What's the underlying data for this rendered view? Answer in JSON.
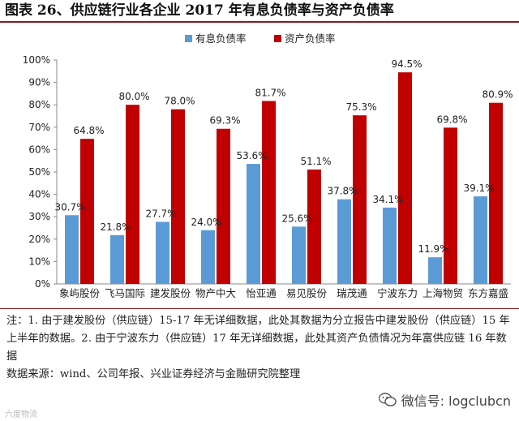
{
  "title": "图表 26、供应链行业各企业 2017 年有息负债率与资产负债率",
  "chart_data": {
    "type": "bar",
    "categories": [
      "象屿股份",
      "飞马国际",
      "建发股份",
      "物产中大",
      "怡亚通",
      "易见股份",
      "瑞茂通",
      "宁波东力",
      "上海物贸",
      "东方嘉盛"
    ],
    "series": [
      {
        "name": "有息负债率",
        "color": "#5b9bd5",
        "values": [
          30.7,
          21.8,
          27.7,
          24.0,
          53.6,
          25.6,
          37.8,
          34.1,
          11.9,
          39.1
        ],
        "labels": [
          "30.7%",
          "21.8%",
          "27.7%",
          "24.0%",
          "53.6%",
          "25.6%",
          "37.8%",
          "34.1%",
          "11.9%",
          "39.1%"
        ]
      },
      {
        "name": "资产负债率",
        "color": "#c00000",
        "values": [
          64.8,
          80.0,
          78.0,
          69.3,
          81.7,
          51.1,
          75.3,
          94.5,
          69.8,
          80.9
        ],
        "labels": [
          "64.8%",
          "80.0%",
          "78.0%",
          "69.3%",
          "81.7%",
          "51.1%",
          "75.3%",
          "94.5%",
          "69.8%",
          "80.9%"
        ]
      }
    ],
    "ylim": [
      0,
      100
    ],
    "yticks": [
      "0%",
      "10%",
      "20%",
      "30%",
      "40%",
      "50%",
      "60%",
      "70%",
      "80%",
      "90%",
      "100%"
    ],
    "legend_position": "top-center",
    "grid": false
  },
  "notes": {
    "line1": "注：1. 由于建发股份（供应链）15-17 年无详细数据，此处其数据为分立报告中建发股份（供应链）15 年上半年的数据。2. 由于宁波东力（供应链）17 年无详细数据，此处其资产负债情况为年富供应链 16 年数据",
    "source": "数据来源：wind、公司年报、兴业证券经济与金融研究院整理"
  },
  "wechat": {
    "label": "微信号: logclubcn"
  },
  "watermark": "六度物流"
}
